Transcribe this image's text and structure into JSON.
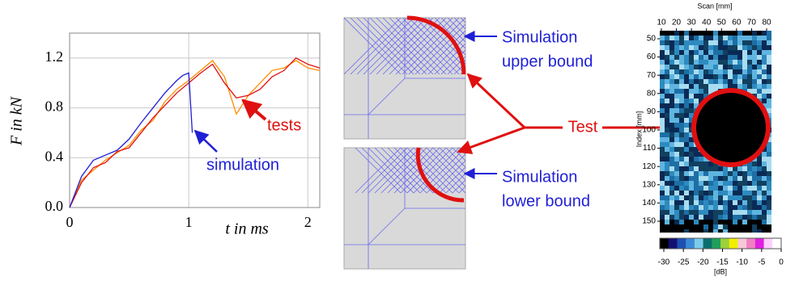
{
  "chart_data": {
    "type": "line",
    "x_label": "t in ms",
    "y_label": "F in kN",
    "xlim": [
      0,
      2.1
    ],
    "ylim": [
      0,
      1.4
    ],
    "xticks": [
      0,
      1,
      2
    ],
    "yticks": [
      {
        "value": 0,
        "label": "0.0"
      },
      0.4,
      0.8,
      1.2
    ],
    "grid": true,
    "series": [
      {
        "name": "simulation",
        "color": "#1f1fd6",
        "x": [
          0,
          0.1,
          0.2,
          0.3,
          0.4,
          0.5,
          0.6,
          0.7,
          0.8,
          0.9,
          0.95,
          1.0,
          1.03
        ],
        "values": [
          0,
          0.25,
          0.38,
          0.42,
          0.46,
          0.55,
          0.68,
          0.8,
          0.92,
          1.02,
          1.06,
          1.08,
          0.6
        ]
      },
      {
        "name": "tests",
        "color": "#e01010",
        "x": [
          0,
          0.1,
          0.2,
          0.3,
          0.4,
          0.5,
          0.6,
          0.7,
          0.8,
          0.9,
          1.0,
          1.1,
          1.2,
          1.3,
          1.4,
          1.5,
          1.6,
          1.7,
          1.8,
          1.9,
          2.0,
          2.1
        ],
        "values": [
          0,
          0.2,
          0.32,
          0.36,
          0.45,
          0.48,
          0.6,
          0.72,
          0.82,
          0.92,
          1.0,
          1.08,
          1.15,
          1.0,
          0.88,
          0.9,
          0.95,
          1.05,
          1.1,
          1.2,
          1.15,
          1.12
        ]
      },
      {
        "color": "#ff8c00",
        "x": [
          0,
          0.1,
          0.2,
          0.3,
          0.4,
          0.5,
          0.6,
          0.7,
          0.8,
          0.9,
          1.0,
          1.1,
          1.2,
          1.3,
          1.4,
          1.5,
          1.6,
          1.7,
          1.8,
          1.9,
          2.0,
          2.1
        ],
        "values": [
          0,
          0.22,
          0.3,
          0.38,
          0.44,
          0.5,
          0.62,
          0.7,
          0.85,
          0.95,
          1.02,
          1.1,
          1.18,
          1.05,
          0.75,
          0.9,
          1.0,
          1.1,
          1.12,
          1.18,
          1.12,
          1.1
        ]
      }
    ]
  },
  "diagram": {
    "upper_label": [
      "Simulation",
      "upper bound"
    ],
    "lower_label": [
      "Simulation",
      "lower bound"
    ],
    "test_label": "Test"
  },
  "cscan": {
    "x_label": "Scan [mm]",
    "xticks": [
      10,
      20,
      30,
      40,
      50,
      60,
      70,
      80
    ],
    "y_label": "Index [mm]",
    "yticks": [
      50,
      60,
      70,
      80,
      90,
      100,
      110,
      120,
      130,
      140,
      150
    ],
    "colorbar_label": "[dB]",
    "colorbar_ticks": [
      -30,
      -25,
      -20,
      -15,
      -10,
      -5,
      0
    ]
  }
}
